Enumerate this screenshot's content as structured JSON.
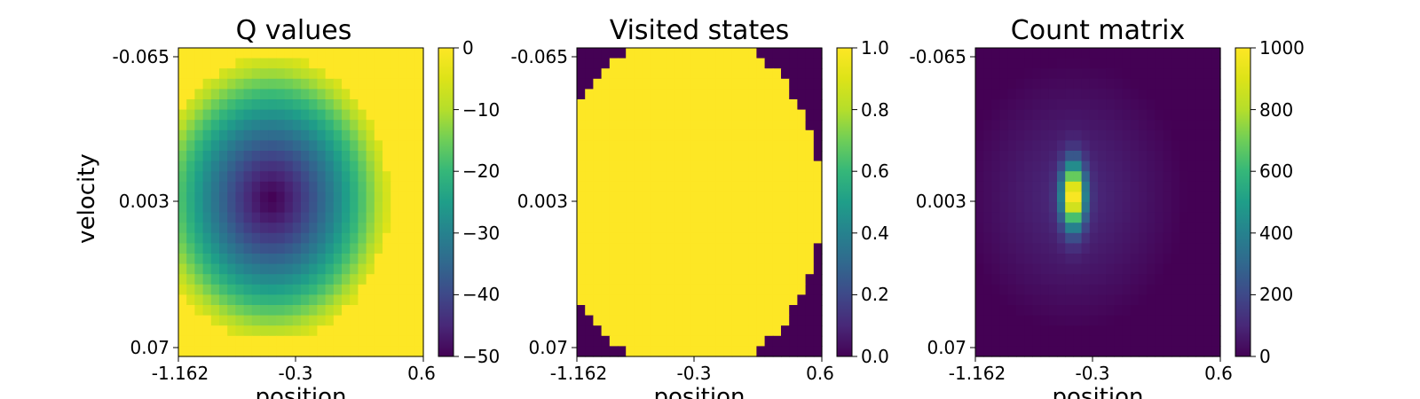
{
  "chart_data": [
    {
      "type": "heatmap",
      "title": "Q values",
      "xlabel": "position",
      "ylabel": "velocity",
      "x_ticks": [
        "-1.162",
        "-0.3",
        "0.6"
      ],
      "y_ticks": [
        "-0.065",
        "0.003",
        "0.07"
      ],
      "xlim": [
        -1.2,
        0.6
      ],
      "ylim": [
        -0.07,
        0.07
      ],
      "colorbar": {
        "range": [
          -50,
          0
        ],
        "ticks": [
          "0",
          "−10",
          "−20",
          "−30",
          "−40",
          "−50"
        ]
      },
      "colormap": "viridis",
      "field": {
        "kind": "q",
        "cx": 0.38,
        "cy": 0.49,
        "rx": 0.48,
        "ry": 0.46,
        "min": -50,
        "ring": -20,
        "edge": -5,
        "outside": 0
      }
    },
    {
      "type": "heatmap",
      "title": "Visited states",
      "xlabel": "position",
      "ylabel": "",
      "x_ticks": [
        "-1.162",
        "-0.3",
        "0.6"
      ],
      "y_ticks": [
        "-0.065",
        "0.003",
        "0.07"
      ],
      "xlim": [
        -1.2,
        0.6
      ],
      "ylim": [
        -0.07,
        0.07
      ],
      "colorbar": {
        "range": [
          0,
          1
        ],
        "ticks": [
          "0.0",
          "0.2",
          "0.4",
          "0.6",
          "0.8",
          "1.0"
        ]
      },
      "colormap": "viridis",
      "field": {
        "kind": "visited",
        "cx": 0.46,
        "cy": 0.5,
        "rx": 0.54,
        "ry": 0.56,
        "inside": 1,
        "outside": 0
      }
    },
    {
      "type": "heatmap",
      "title": "Count matrix",
      "xlabel": "position",
      "ylabel": "",
      "x_ticks": [
        "-1.162",
        "-0.3",
        "0.6"
      ],
      "y_ticks": [
        "-0.065",
        "0.003",
        "0.07"
      ],
      "xlim": [
        -1.2,
        0.6
      ],
      "ylim": [
        -0.07,
        0.07
      ],
      "colorbar": {
        "range": [
          0,
          1000
        ],
        "ticks": [
          "0",
          "200",
          "400",
          "600",
          "800",
          "1000"
        ]
      },
      "colormap": "viridis",
      "field": {
        "kind": "count",
        "cx": 0.4,
        "cy": 0.48,
        "rx": 0.46,
        "ry": 0.44,
        "peak": 1000,
        "base": 120
      }
    }
  ]
}
